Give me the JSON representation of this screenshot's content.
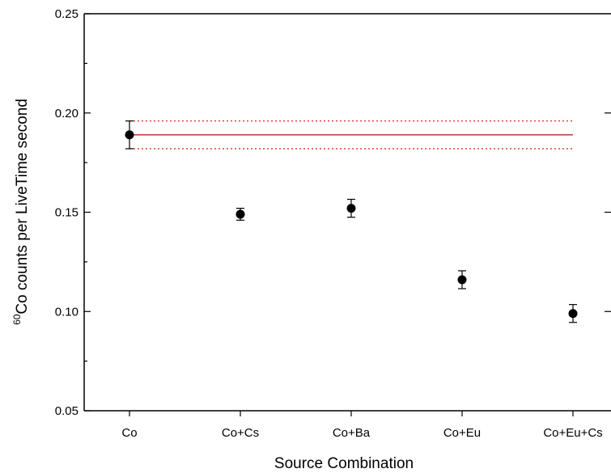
{
  "chart_data": {
    "type": "scatter",
    "title": "",
    "xlabel": "Source Combination",
    "ylabel": {
      "superscript": "60",
      "text": "Co counts per LiveTime second"
    },
    "ylim": [
      0.05,
      0.25
    ],
    "yticks": [
      "0.05",
      "0.10",
      "0.15",
      "0.20",
      "0.25"
    ],
    "categories": [
      "Co",
      "Co+Cs",
      "Co+Ba",
      "Co+Eu",
      "Co+Eu+Cs"
    ],
    "series": [
      {
        "values": [
          0.189,
          0.149,
          0.152,
          0.116,
          0.099
        ],
        "errors": [
          0.007,
          0.003,
          0.0045,
          0.0045,
          0.0045
        ],
        "color": "#000000",
        "marker": "filled-circle"
      }
    ],
    "reference_lines": [
      {
        "y": 0.189,
        "style": "solid",
        "color": "#c0392b"
      },
      {
        "y": 0.196,
        "style": "dotted",
        "color": "#e03030"
      },
      {
        "y": 0.182,
        "style": "dotted",
        "color": "#e03030"
      }
    ],
    "grid": false,
    "legend": "none"
  }
}
